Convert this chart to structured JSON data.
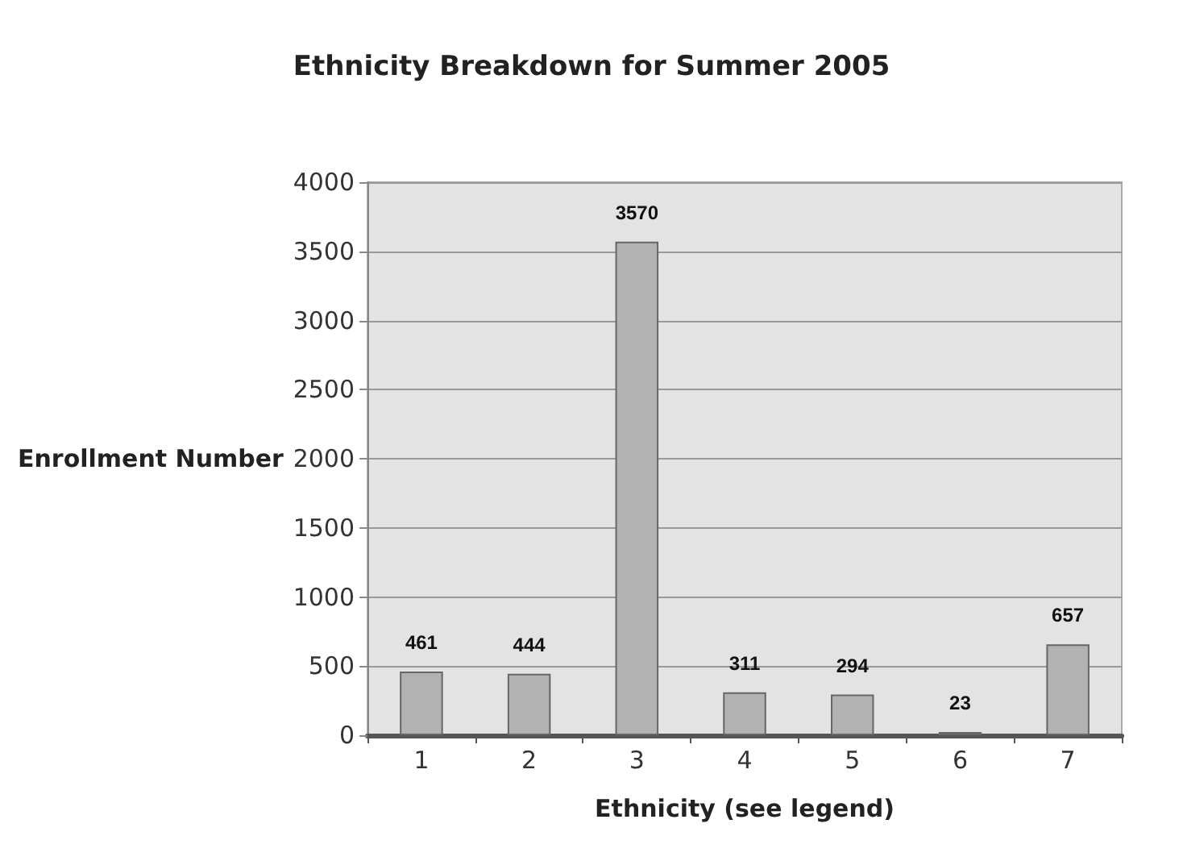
{
  "chart_data": {
    "type": "bar",
    "title": "Ethnicity Breakdown for Summer 2005",
    "xlabel": "Ethnicity (see legend)",
    "ylabel": "Enrollment Number",
    "categories": [
      "1",
      "2",
      "3",
      "4",
      "5",
      "6",
      "7"
    ],
    "values": [
      461,
      444,
      3570,
      311,
      294,
      23,
      657
    ],
    "color": "#b2b2b2",
    "ylim": [
      0,
      4000
    ],
    "yticks": [
      0,
      500,
      1000,
      1500,
      2000,
      2500,
      3000,
      3500,
      4000
    ],
    "grid": true,
    "data_labels": true
  }
}
